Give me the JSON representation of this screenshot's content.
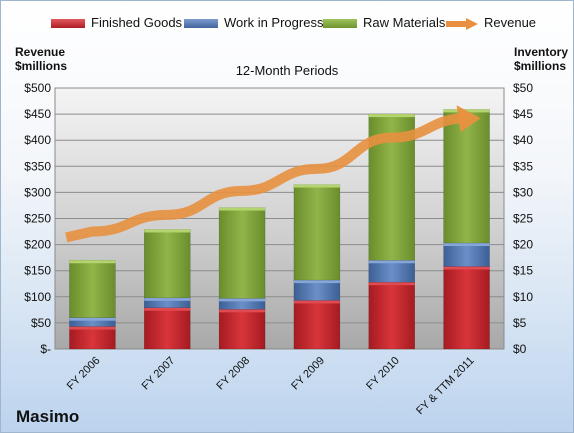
{
  "chart_data": {
    "type": "bar",
    "stacked": true,
    "subtitle": "12-Month Periods",
    "company": "Masimo",
    "left_axis_title": [
      "Revenue",
      "$millions"
    ],
    "right_axis_title": [
      "Inventory",
      "$millions"
    ],
    "categories": [
      "FY 2006",
      "FY 2007",
      "FY 2008",
      "FY 2009",
      "FY 2010",
      "FY & TTM 2011"
    ],
    "left_ticks": [
      "$-",
      "$50",
      "$100",
      "$150",
      "$200",
      "$250",
      "$300",
      "$350",
      "$400",
      "$450",
      "$500"
    ],
    "right_ticks": [
      "$0",
      "$5",
      "$10",
      "$15",
      "$20",
      "$25",
      "$30",
      "$35",
      "$40",
      "$45",
      "$50"
    ],
    "ylim_left": [
      0,
      500
    ],
    "ylim_right": [
      0,
      50
    ],
    "grid": true,
    "legend_position": "top",
    "series": [
      {
        "name": "Finished Goods",
        "axis": "right",
        "color": "#c0272d",
        "values": [
          4.3,
          7.9,
          7.6,
          9.3,
          12.8,
          15.8
        ]
      },
      {
        "name": "Work in Progress",
        "axis": "right",
        "color": "#4f72a8",
        "values": [
          1.7,
          1.9,
          2.1,
          3.9,
          4.2,
          4.5
        ]
      },
      {
        "name": "Raw Materials",
        "axis": "right",
        "color": "#7ea03a",
        "values": [
          11.0,
          13.1,
          17.4,
          18.3,
          28.0,
          25.6
        ]
      },
      {
        "name": "Revenue",
        "axis": "left",
        "type": "line",
        "color": "#e8903f",
        "values": [
          225,
          257,
          303,
          345,
          405,
          442
        ]
      }
    ]
  }
}
